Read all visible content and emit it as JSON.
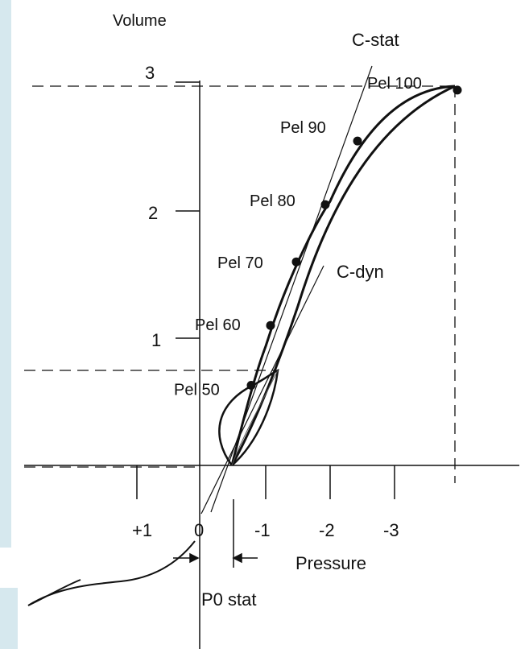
{
  "chart_data": {
    "type": "line",
    "title": "",
    "ylabel": "Volume",
    "xlabel": "Pressure",
    "x_ticks": [
      "+1",
      "0",
      "-1",
      "-2",
      "-3"
    ],
    "y_ticks": [
      "1",
      "2",
      "3"
    ],
    "xlim": [
      1.5,
      -4.0
    ],
    "ylim": [
      -0.2,
      3.1
    ],
    "series": [
      {
        "name": "",
        "points": [
          {
            "x": -0.8,
            "y": 0.63,
            "label": "Pel 50"
          },
          {
            "x": -1.1,
            "y": 1.1,
            "label": "Pel 60"
          },
          {
            "x": -1.5,
            "y": 1.6,
            "label": "Pel 70"
          },
          {
            "x": -1.95,
            "y": 2.05,
            "label": "Pel 80"
          },
          {
            "x": -2.45,
            "y": 2.55,
            "label": "Pel 90"
          },
          {
            "x": -4.0,
            "y": 2.95,
            "label": "Pel 100"
          }
        ]
      }
    ],
    "annotations": [
      "C-stat",
      "C-dyn",
      "P0 stat"
    ]
  },
  "colors": {
    "ink": "#111111",
    "sidebar": "#d6e8ee"
  }
}
